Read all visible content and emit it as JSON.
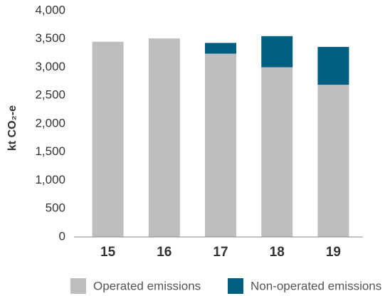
{
  "chart_data": {
    "type": "stacked_bar",
    "y_label": "kt CO₂-e",
    "categories": [
      "15",
      "16",
      "17",
      "18",
      "19"
    ],
    "series": [
      {
        "name": "Operated emissions",
        "color": "#bdbec0",
        "values": [
          3450,
          3510,
          3240,
          3000,
          2690
        ]
      },
      {
        "name": "Non-operated emissions",
        "color": "#005f7f",
        "values": [
          0,
          0,
          190,
          550,
          670
        ]
      }
    ],
    "ylim": [
      0,
      4000
    ],
    "yticks": [
      0,
      500,
      {
        "value": 1000,
        "label": "1,000"
      },
      {
        "value": 1500,
        "label": "1,500"
      },
      {
        "value": 2000,
        "label": "2,000"
      },
      {
        "value": 2500,
        "label": "2,500"
      },
      {
        "value": 3000,
        "label": "3,000"
      },
      {
        "value": 3500,
        "label": "3,500"
      },
      {
        "value": 4000,
        "label": "4,000"
      }
    ],
    "grid": false,
    "legend": "bottom"
  }
}
